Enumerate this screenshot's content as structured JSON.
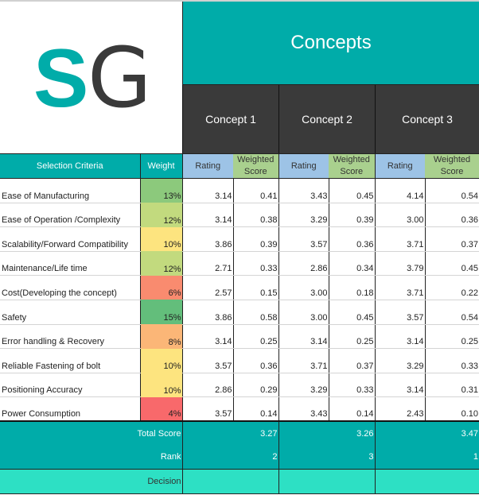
{
  "logo": {
    "letters": [
      "S",
      "G"
    ],
    "colors": {
      "S": "#00aca9",
      "G": "#3a3a3a"
    }
  },
  "header": {
    "title": "Concepts",
    "concepts": [
      "Concept 1",
      "Concept 2",
      "Concept 3"
    ]
  },
  "columns": {
    "criteria": "Selection Criteria",
    "weight": "Weight",
    "rating": "Rating",
    "weighted_line1": "Weighted",
    "weighted_line2": "Score"
  },
  "rows": [
    {
      "criteria": "Ease of Manufacturing",
      "weight": "13%",
      "weight_color": "#8cc97c",
      "c1": [
        "3.14",
        "0.41"
      ],
      "c2": [
        "3.43",
        "0.45"
      ],
      "c3": [
        "4.14",
        "0.54"
      ]
    },
    {
      "criteria": "Ease of Operation /Complexity",
      "weight": "12%",
      "weight_color": "#c2da7e",
      "c1": [
        "3.14",
        "0.38"
      ],
      "c2": [
        "3.29",
        "0.39"
      ],
      "c3": [
        "3.00",
        "0.36"
      ]
    },
    {
      "criteria": "Scalability/Forward Compatibility",
      "weight": "10%",
      "weight_color": "#fde47f",
      "c1": [
        "3.86",
        "0.39"
      ],
      "c2": [
        "3.57",
        "0.36"
      ],
      "c3": [
        "3.71",
        "0.37"
      ]
    },
    {
      "criteria": "Maintenance/Life time",
      "weight": "12%",
      "weight_color": "#c2da7e",
      "c1": [
        "2.71",
        "0.33"
      ],
      "c2": [
        "2.86",
        "0.34"
      ],
      "c3": [
        "3.79",
        "0.45"
      ]
    },
    {
      "criteria": "Cost(Developing the concept)",
      "weight": "6%",
      "weight_color": "#f98b6f",
      "c1": [
        "2.57",
        "0.15"
      ],
      "c2": [
        "3.00",
        "0.18"
      ],
      "c3": [
        "3.71",
        "0.22"
      ]
    },
    {
      "criteria": "Safety",
      "weight": "15%",
      "weight_color": "#63be7b",
      "c1": [
        "3.86",
        "0.58"
      ],
      "c2": [
        "3.00",
        "0.45"
      ],
      "c3": [
        "3.57",
        "0.54"
      ]
    },
    {
      "criteria": "Error handling & Recovery",
      "weight": "8%",
      "weight_color": "#fbb677",
      "c1": [
        "3.14",
        "0.25"
      ],
      "c2": [
        "3.14",
        "0.25"
      ],
      "c3": [
        "3.14",
        "0.25"
      ]
    },
    {
      "criteria": "Reliable Fastening of bolt",
      "weight": "10%",
      "weight_color": "#fde47f",
      "c1": [
        "3.57",
        "0.36"
      ],
      "c2": [
        "3.71",
        "0.37"
      ],
      "c3": [
        "3.29",
        "0.33"
      ]
    },
    {
      "criteria": "Positioning Accuracy",
      "weight": "10%",
      "weight_color": "#fde47f",
      "c1": [
        "2.86",
        "0.29"
      ],
      "c2": [
        "3.29",
        "0.33"
      ],
      "c3": [
        "3.14",
        "0.31"
      ]
    },
    {
      "criteria": "Power Consumption",
      "weight": "4%",
      "weight_color": "#f8696b",
      "c1": [
        "3.57",
        "0.14"
      ],
      "c2": [
        "3.43",
        "0.14"
      ],
      "c3": [
        "2.43",
        "0.10"
      ]
    }
  ],
  "footer": {
    "total_label": "Total Score",
    "totals": [
      "3.27",
      "3.26",
      "3.47"
    ],
    "rank_label": "Rank",
    "ranks": [
      "2",
      "3",
      "1"
    ],
    "decision_label": "Decision",
    "decisions": [
      "",
      "",
      ""
    ]
  },
  "colors": {
    "teal": "#00aca9",
    "dark": "#3a3a3a",
    "rating_header": "#9dc3e6",
    "weighted_header": "#a9d08e",
    "decision": "#2de0c4"
  }
}
